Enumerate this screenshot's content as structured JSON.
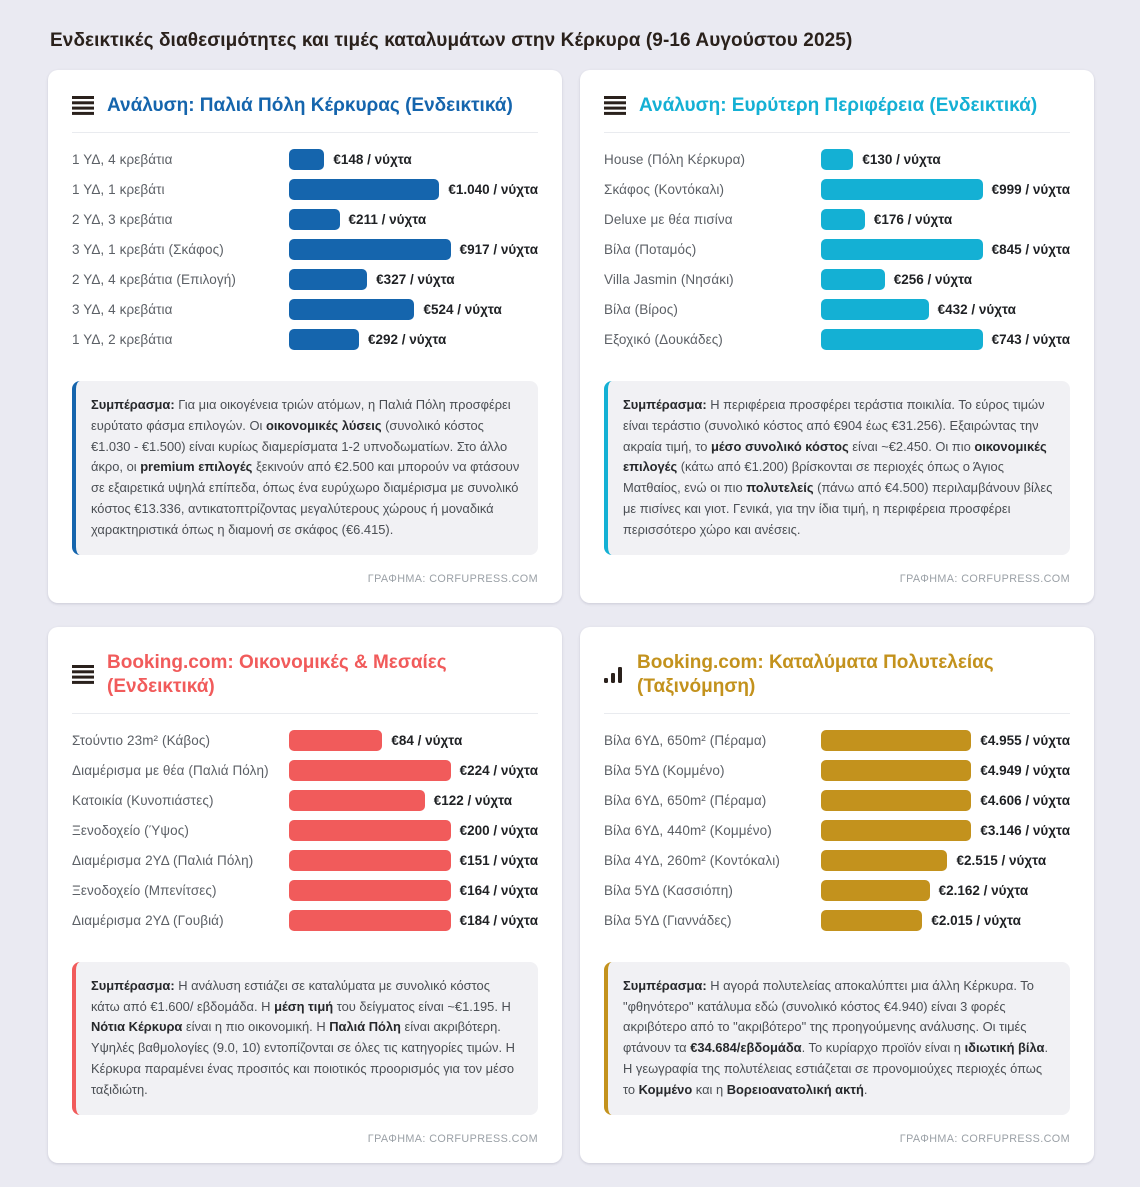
{
  "page": {
    "title": "Ενδεικτικές διαθεσιμότητες και τιμές καταλυμάτων στην Κέρκυρα (9-16 Αυγούστου 2025)",
    "background_color": "#eaeaf2",
    "card_color": "#ffffff"
  },
  "chart_data": [
    {
      "type": "bar",
      "title": "Ανάλυση: Παλιά Πόλη Κέρκυρας (Ενδεικτικά)",
      "accent": "#1565ad",
      "unit": "€ / νύχτα",
      "xlim": [
        0,
        1040
      ],
      "categories": [
        "1 ΥΔ, 4 κρεβάτια",
        "1 ΥΔ, 1 κρεβάτι",
        "2 ΥΔ, 3 κρεβάτια",
        "3 ΥΔ, 1 κρεβάτι (Σκάφος)",
        "2 ΥΔ, 4 κρεβάτια (Επιλογή)",
        "3 ΥΔ, 4 κρεβάτια",
        "1 ΥΔ, 2 κρεβάτια"
      ],
      "values": [
        148,
        1040,
        211,
        917,
        327,
        524,
        292
      ],
      "value_labels": [
        "€148 / νύχτα",
        "€1.040 / νύχτα",
        "€211 / νύχτα",
        "€917 / νύχτα",
        "€327 / νύχτα",
        "€524 / νύχτα",
        "€292 / νύχτα"
      ],
      "bar_pcts": [
        14.2,
        100,
        20.3,
        88.2,
        31.4,
        50.4,
        28.1
      ]
    },
    {
      "type": "bar",
      "title": "Ανάλυση: Ευρύτερη Περιφέρεια (Ενδεικτικά)",
      "accent": "#14b0d4",
      "unit": "€ / νύχτα",
      "xlim": [
        0,
        999
      ],
      "categories": [
        "House (Πόλη Κέρκυρα)",
        "Σκάφος (Κοντόκαλι)",
        "Deluxe με θέα πισίνα",
        "Βίλα (Ποταμός)",
        "Villa Jasmin (Νησάκι)",
        "Βίλα (Βίρος)",
        "Εξοχικό (Δουκάδες)"
      ],
      "values": [
        130,
        999,
        176,
        845,
        256,
        432,
        743
      ],
      "value_labels": [
        "€130 / νύχτα",
        "€999 / νύχτα",
        "€176 / νύχτα",
        "€845 / νύχτα",
        "€256 / νύχτα",
        "€432 / νύχτα",
        "€743 / νύχτα"
      ],
      "bar_pcts": [
        13.0,
        100,
        17.6,
        84.6,
        25.6,
        43.2,
        74.4
      ]
    },
    {
      "type": "bar",
      "title": "Booking.com: Οικονομικές & Μεσαίες (Ενδεικτικά)",
      "accent": "#f15b5b",
      "unit": "€ / νύχτα",
      "xlim": [
        0,
        224
      ],
      "categories": [
        "Στούντιο 23m² (Κάβος)",
        "Διαμέρισμα με θέα (Παλιά Πόλη)",
        "Κατοικία (Κυνοπιάστες)",
        "Ξενοδοχείο (Ύψος)",
        "Διαμέρισμα 2ΥΔ (Παλιά Πόλη)",
        "Ξενοδοχείο (Μπενίτσες)",
        "Διαμέρισμα 2ΥΔ (Γουβιά)"
      ],
      "values": [
        84,
        224,
        122,
        200,
        151,
        164,
        184
      ],
      "value_labels": [
        "€84 / νύχτα",
        "€224 / νύχτα",
        "€122 / νύχτα",
        "€200 / νύχτα",
        "€151 / νύχτα",
        "€164 / νύχτα",
        "€184 / νύχτα"
      ],
      "bar_pcts": [
        37.5,
        100,
        54.5,
        89.3,
        67.4,
        73.2,
        82.1
      ]
    },
    {
      "type": "bar",
      "title": "Booking.com: Καταλύματα Πολυτελείας (Ταξινόμηση)",
      "accent": "#c3921d",
      "unit": "€ / νύχτα",
      "xlim": [
        0,
        4955
      ],
      "categories": [
        "Βίλα 6ΥΔ, 650m² (Πέραμα)",
        "Βίλα 5ΥΔ (Κομμένο)",
        "Βίλα 6ΥΔ, 650m² (Πέραμα)",
        "Βίλα 6ΥΔ, 440m² (Κομμένο)",
        "Βίλα 4ΥΔ, 260m² (Κοντόκαλι)",
        "Βίλα 5ΥΔ (Κασσιόπη)",
        "Βίλα 5ΥΔ (Γιαννάδες)"
      ],
      "values": [
        4955,
        4949,
        4606,
        3146,
        2515,
        2162,
        2015
      ],
      "value_labels": [
        "€4.955 / νύχτα",
        "€4.949 / νύχτα",
        "€4.606 / νύχτα",
        "€3.146 / νύχτα",
        "€2.515 / νύχτα",
        "€2.162 / νύχτα",
        "€2.015 / νύχτα"
      ],
      "bar_pcts": [
        100,
        99.9,
        92.9,
        63.5,
        50.8,
        43.6,
        40.7
      ]
    }
  ],
  "cards": [
    {
      "icon": "list-icon",
      "credit": "ΓΡΑΦΗΜΑ: CORFUPRESS.COM",
      "summary": [
        {
          "t": "Συμπέρασμα:",
          "b": true
        },
        {
          "t": " Για μια οικογένεια τριών ατόμων, η Παλιά Πόλη προσφέρει ευρύτατο φάσμα επιλογών. Οι "
        },
        {
          "t": "οικονομικές λύσεις",
          "b": true
        },
        {
          "t": " (συνολικό κόστος €1.030 - €1.500) είναι κυρίως διαμερίσματα 1-2 υπνοδωματίων. Στο άλλο άκρο, οι "
        },
        {
          "t": "premium επιλογές",
          "b": true
        },
        {
          "t": " ξεκινούν από €2.500 και μπορούν να φτάσουν σε εξαιρετικά υψηλά επίπεδα, όπως ένα ευρύχωρο διαμέρισμα με συνολικό κόστος €13.336, αντικατοπτρίζοντας μεγαλύτερους χώρους ή μοναδικά χαρακτηριστικά όπως η διαμονή σε σκάφος (€6.415)."
        }
      ]
    },
    {
      "icon": "list-icon",
      "credit": "ΓΡΑΦΗΜΑ: CORFUPRESS.COM",
      "summary": [
        {
          "t": "Συμπέρασμα:",
          "b": true
        },
        {
          "t": " Η περιφέρεια προσφέρει τεράστια ποικιλία. Το εύρος τιμών είναι τεράστιο (συνολικό κόστος από €904 έως €31.256). Εξαιρώντας την ακραία τιμή, το "
        },
        {
          "t": "μέσο συνολικό κόστος",
          "b": true
        },
        {
          "t": " είναι ~€2.450. Οι πιο "
        },
        {
          "t": "οικονομικές επιλογές",
          "b": true
        },
        {
          "t": " (κάτω από €1.200) βρίσκονται σε περιοχές όπως ο Άγιος Ματθαίος, ενώ οι πιο "
        },
        {
          "t": "πολυτελείς",
          "b": true
        },
        {
          "t": " (πάνω από €4.500) περιλαμβάνουν βίλες με πισίνες και γιοτ. Γενικά, για την ίδια τιμή, η περιφέρεια προσφέρει περισσότερο χώρο και ανέσεις."
        }
      ]
    },
    {
      "icon": "list-icon",
      "credit": "ΓΡΑΦΗΜΑ: CORFUPRESS.COM",
      "summary": [
        {
          "t": "Συμπέρασμα:",
          "b": true
        },
        {
          "t": " Η ανάλυση εστιάζει σε καταλύματα με συνολικό κόστος κάτω από €1.600/ εβδομάδα. Η "
        },
        {
          "t": "μέση τιμή",
          "b": true
        },
        {
          "t": " του δείγματος είναι ~€1.195. Η "
        },
        {
          "t": "Νότια Κέρκυρα",
          "b": true
        },
        {
          "t": " είναι η πιο οικονομική. Η "
        },
        {
          "t": "Παλιά Πόλη",
          "b": true
        },
        {
          "t": " είναι ακριβότερη. Υψηλές βαθμολογίες (9.0, 10) εντοπίζονται σε όλες τις κατηγορίες τιμών. Η Κέρκυρα παραμένει ένας προσιτός και ποιοτικός προορισμός για τον μέσο ταξιδιώτη."
        }
      ]
    },
    {
      "icon": "bar-chart-icon",
      "credit": "ΓΡΑΦΗΜΑ: CORFUPRESS.COM",
      "summary": [
        {
          "t": "Συμπέρασμα:",
          "b": true
        },
        {
          "t": " Η αγορά πολυτελείας αποκαλύπτει μια άλλη Κέρκυρα. Το \"φθηνότερο\" κατάλυμα εδώ (συνολικό κόστος €4.940) είναι 3 φορές ακριβότερο από το \"ακριβότερο\" της προηγούμενης ανάλυσης. Οι τιμές φτάνουν τα "
        },
        {
          "t": "€34.684/εβδομάδα",
          "b": true
        },
        {
          "t": ". Το κυρίαρχο προϊόν είναι η "
        },
        {
          "t": "ιδιωτική βίλα",
          "b": true
        },
        {
          "t": ". Η γεωγραφία της πολυτέλειας εστιάζεται σε προνομιούχες περιοχές όπως το "
        },
        {
          "t": "Κομμένο",
          "b": true
        },
        {
          "t": " και η "
        },
        {
          "t": "Βορειοανατολική ακτή",
          "b": true
        },
        {
          "t": "."
        }
      ]
    }
  ]
}
